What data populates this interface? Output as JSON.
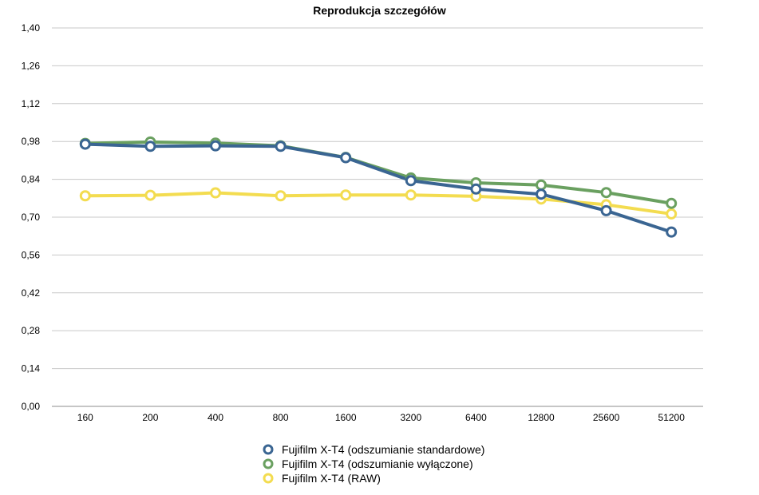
{
  "chart_data": {
    "type": "line",
    "title": "Reprodukcja szczegółów",
    "xlabel": "",
    "ylabel": "",
    "categories": [
      "160",
      "200",
      "400",
      "800",
      "1600",
      "3200",
      "6400",
      "12800",
      "25600",
      "51200"
    ],
    "y_ticks": [
      "0,00",
      "0,14",
      "0,28",
      "0,42",
      "0,56",
      "0,70",
      "0,84",
      "0,98",
      "1,12",
      "1,26",
      "1,40"
    ],
    "ylim": [
      0,
      1.4
    ],
    "grid": "horizontal",
    "legend_position": "bottom",
    "series": [
      {
        "name": "Fujifilm X-T4 (odszumianie standardowe)",
        "color": "#3a6592",
        "values": [
          0.97,
          0.962,
          0.964,
          0.962,
          0.92,
          0.835,
          0.804,
          0.785,
          0.724,
          0.645
        ]
      },
      {
        "name": "Fujifilm X-T4  (odszumianie wyłączone)",
        "color": "#6aa060",
        "values": [
          0.973,
          0.978,
          0.974,
          0.964,
          0.921,
          0.845,
          0.827,
          0.819,
          0.791,
          0.751
        ]
      },
      {
        "name": "Fujifilm X-T4  (RAW)",
        "color": "#f3dc50",
        "values": [
          0.779,
          0.781,
          0.79,
          0.779,
          0.782,
          0.782,
          0.777,
          0.767,
          0.746,
          0.712
        ]
      }
    ]
  }
}
